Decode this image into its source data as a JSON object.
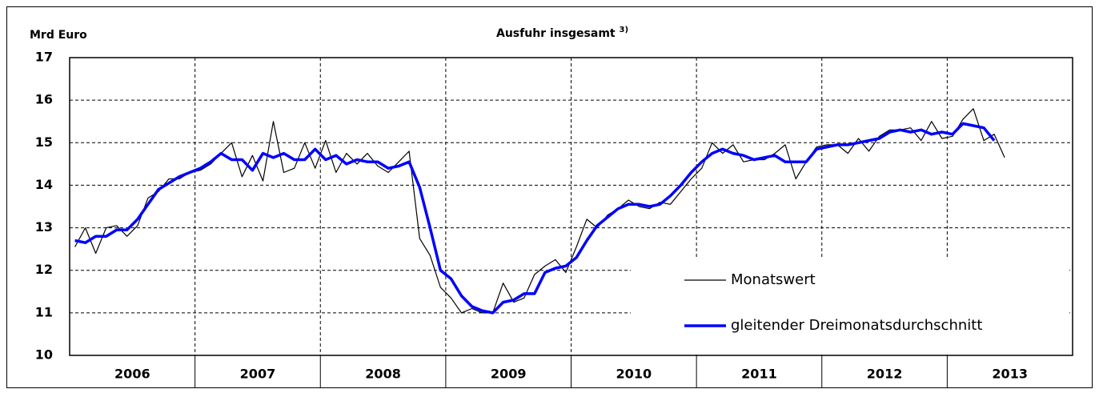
{
  "chart_data": {
    "type": "line",
    "title": "Ausfuhr insgesamt",
    "title_note": "3)",
    "ylabel": "Mrd Euro",
    "categories": [
      "2006",
      "2007",
      "2008",
      "2009",
      "2010",
      "2011",
      "2012",
      "2013"
    ],
    "xlim": [
      2006,
      2014
    ],
    "ylim": [
      10,
      17
    ],
    "yticks": [
      10,
      11,
      12,
      13,
      14,
      15,
      16,
      17
    ],
    "grid": true,
    "x": [
      2006.042,
      2006.125,
      2006.208,
      2006.292,
      2006.375,
      2006.458,
      2006.542,
      2006.625,
      2006.708,
      2006.792,
      2006.875,
      2006.958,
      2007.042,
      2007.125,
      2007.208,
      2007.292,
      2007.375,
      2007.458,
      2007.542,
      2007.625,
      2007.708,
      2007.792,
      2007.875,
      2007.958,
      2008.042,
      2008.125,
      2008.208,
      2008.292,
      2008.375,
      2008.458,
      2008.542,
      2008.625,
      2008.708,
      2008.792,
      2008.875,
      2008.958,
      2009.042,
      2009.125,
      2009.208,
      2009.292,
      2009.375,
      2009.458,
      2009.542,
      2009.625,
      2009.708,
      2009.792,
      2009.875,
      2009.958,
      2010.042,
      2010.125,
      2010.208,
      2010.292,
      2010.375,
      2010.458,
      2010.542,
      2010.625,
      2010.708,
      2010.792,
      2010.875,
      2010.958,
      2011.042,
      2011.125,
      2011.208,
      2011.292,
      2011.375,
      2011.458,
      2011.542,
      2011.625,
      2011.708,
      2011.792,
      2011.875,
      2011.958,
      2012.042,
      2012.125,
      2012.208,
      2012.292,
      2012.375,
      2012.458,
      2012.542,
      2012.625,
      2012.708,
      2012.792,
      2012.875,
      2012.958,
      2013.042,
      2013.125,
      2013.208,
      2013.292,
      2013.375,
      2013.458
    ],
    "series": [
      {
        "name": "Monatswert",
        "color": "#000000",
        "width": 1.2,
        "values": [
          12.55,
          13.0,
          12.4,
          13.0,
          13.05,
          12.8,
          13.05,
          13.7,
          13.85,
          14.15,
          14.15,
          14.3,
          14.35,
          14.5,
          14.75,
          15.0,
          14.2,
          14.7,
          14.1,
          15.5,
          14.3,
          14.4,
          15.0,
          14.4,
          15.05,
          14.3,
          14.75,
          14.5,
          14.75,
          14.45,
          14.3,
          14.55,
          14.8,
          12.75,
          12.35,
          11.6,
          11.35,
          11.0,
          11.1,
          11.0,
          11.0,
          11.7,
          11.25,
          11.35,
          11.9,
          12.1,
          12.25,
          11.95,
          12.55,
          13.2,
          13.0,
          13.3,
          13.45,
          13.65,
          13.5,
          13.45,
          13.6,
          13.55,
          13.85,
          14.15,
          14.4,
          15.0,
          14.75,
          14.95,
          14.55,
          14.6,
          14.6,
          14.75,
          14.95,
          14.15,
          14.55,
          14.9,
          14.95,
          14.95,
          14.75,
          15.1,
          14.8,
          15.15,
          15.3,
          15.3,
          15.35,
          15.05,
          15.5,
          15.1,
          15.15,
          15.55,
          15.8,
          15.05,
          15.2,
          14.65
        ]
      },
      {
        "name": "gleitender Dreimonatsdurchschnitt",
        "color": "#0000ff",
        "width": 3.5,
        "values": [
          12.7,
          12.65,
          12.8,
          12.8,
          12.95,
          12.95,
          13.2,
          13.55,
          13.9,
          14.05,
          14.2,
          14.3,
          14.4,
          14.55,
          14.75,
          14.6,
          14.6,
          14.35,
          14.75,
          14.65,
          14.75,
          14.6,
          14.6,
          14.85,
          14.6,
          14.7,
          14.5,
          14.6,
          14.55,
          14.55,
          14.4,
          14.45,
          14.55,
          13.95,
          13.0,
          12.0,
          11.8,
          11.4,
          11.15,
          11.05,
          11.0,
          11.25,
          11.3,
          11.45,
          11.45,
          11.95,
          12.05,
          12.1,
          12.3,
          12.7,
          13.05,
          13.25,
          13.45,
          13.55,
          13.55,
          13.5,
          13.55,
          13.75,
          14.0,
          14.3,
          14.55,
          14.75,
          14.85,
          14.75,
          14.7,
          14.6,
          14.65,
          14.7,
          14.55,
          14.55,
          14.55,
          14.85,
          14.9,
          14.95,
          14.95,
          15.0,
          15.05,
          15.1,
          15.25,
          15.3,
          15.25,
          15.3,
          15.2,
          15.25,
          15.2,
          15.45,
          15.4,
          15.35,
          15.05,
          null
        ]
      }
    ]
  }
}
